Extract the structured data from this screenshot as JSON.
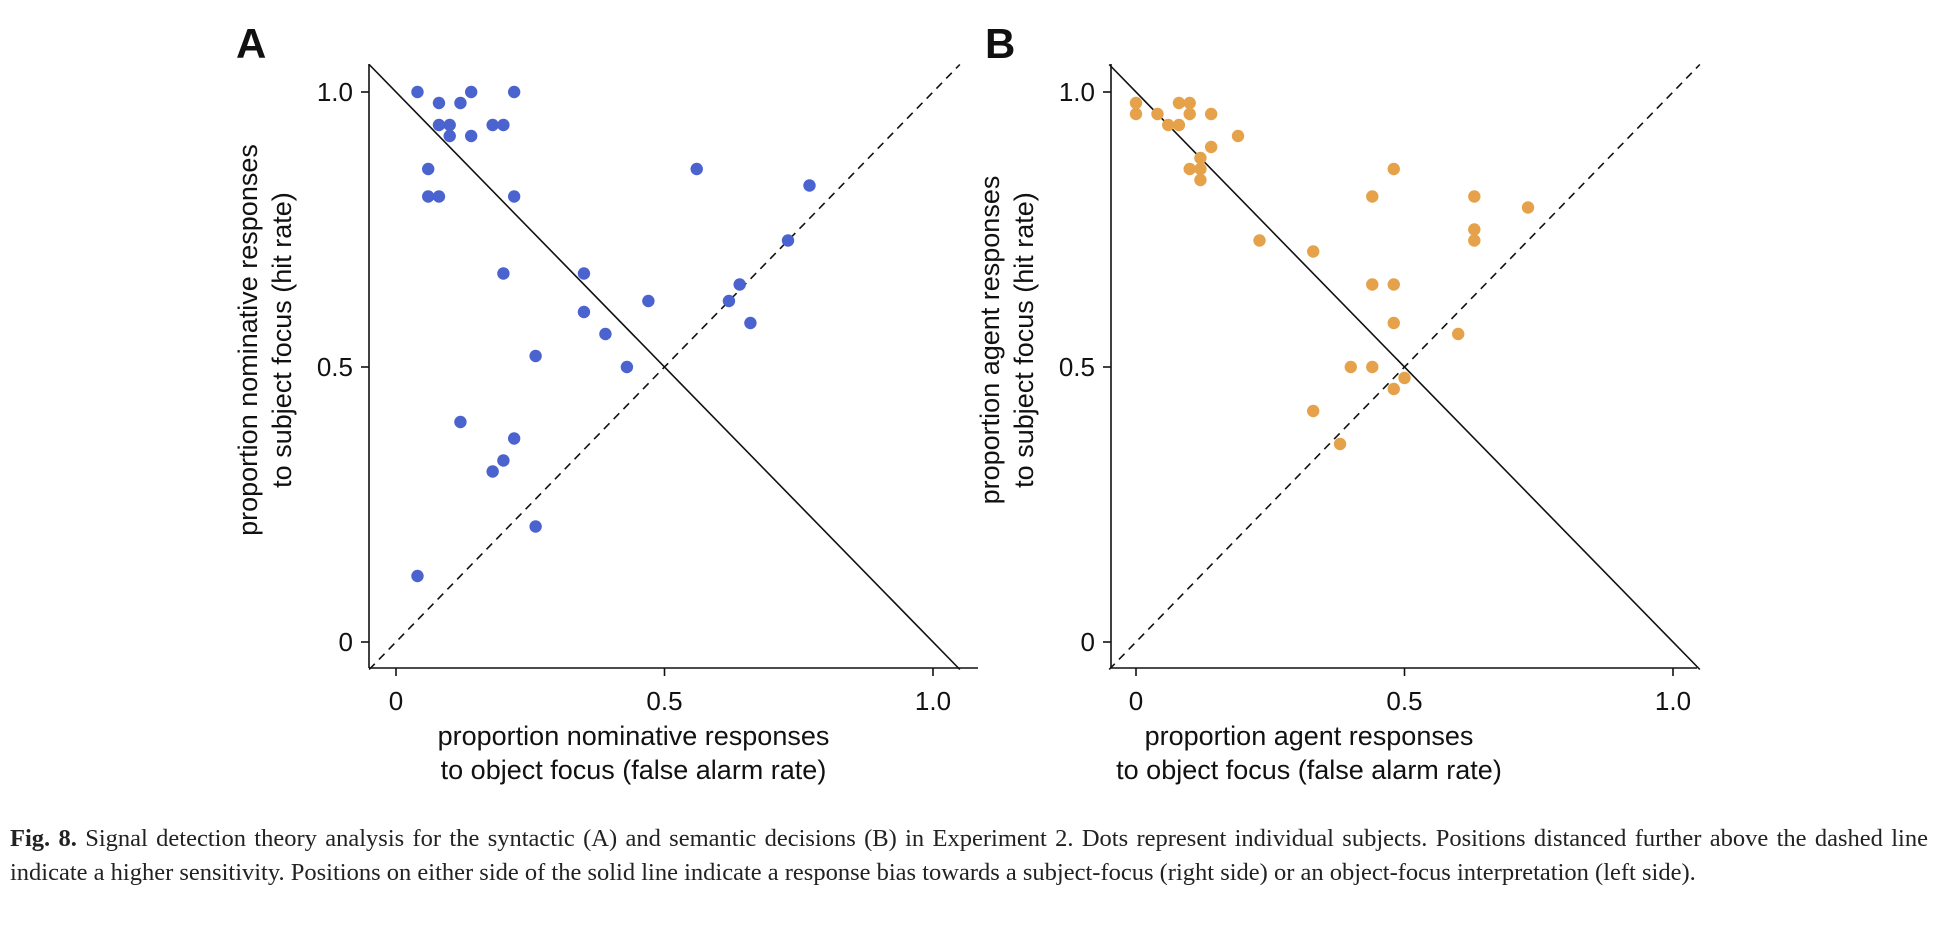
{
  "colors": {
    "panel_a_points": "#4a63cf",
    "panel_b_points": "#e5a24a"
  },
  "chart_data": [
    {
      "type": "scatter",
      "panel": "A",
      "xlabel": [
        "proportion nominative responses",
        "to object focus (false alarm rate)"
      ],
      "ylabel": [
        "proportion nominative responses",
        "to subject focus (hit rate)"
      ],
      "xticks": [
        "0",
        "0.5",
        "1.0"
      ],
      "yticks": [
        "0",
        "0.5",
        "1.0"
      ],
      "xlim": [
        -0.05,
        1.05
      ],
      "ylim": [
        -0.05,
        1.05
      ],
      "grid": false,
      "reference_lines": {
        "solid": "y = 1 - x",
        "dashed": "y = x"
      },
      "points": [
        [
          0.04,
          1.0
        ],
        [
          0.14,
          1.0
        ],
        [
          0.22,
          1.0
        ],
        [
          0.08,
          0.98
        ],
        [
          0.12,
          0.98
        ],
        [
          0.08,
          0.94
        ],
        [
          0.1,
          0.94
        ],
        [
          0.18,
          0.94
        ],
        [
          0.2,
          0.94
        ],
        [
          0.1,
          0.92
        ],
        [
          0.14,
          0.92
        ],
        [
          0.06,
          0.86
        ],
        [
          0.06,
          0.81
        ],
        [
          0.08,
          0.81
        ],
        [
          0.22,
          0.81
        ],
        [
          0.56,
          0.86
        ],
        [
          0.77,
          0.83
        ],
        [
          0.73,
          0.73
        ],
        [
          0.2,
          0.67
        ],
        [
          0.35,
          0.67
        ],
        [
          0.64,
          0.65
        ],
        [
          0.47,
          0.62
        ],
        [
          0.62,
          0.62
        ],
        [
          0.35,
          0.6
        ],
        [
          0.66,
          0.58
        ],
        [
          0.39,
          0.56
        ],
        [
          0.26,
          0.52
        ],
        [
          0.43,
          0.5
        ],
        [
          0.12,
          0.4
        ],
        [
          0.22,
          0.37
        ],
        [
          0.2,
          0.33
        ],
        [
          0.18,
          0.31
        ],
        [
          0.26,
          0.21
        ],
        [
          0.04,
          0.12
        ]
      ]
    },
    {
      "type": "scatter",
      "panel": "B",
      "xlabel": [
        "proportion agent responses",
        "to object focus (false alarm rate)"
      ],
      "ylabel": [
        "proportion agent responses",
        "to subject focus (hit rate)"
      ],
      "xticks": [
        "0",
        "0.5",
        "1.0"
      ],
      "yticks": [
        "0",
        "0.5",
        "1.0"
      ],
      "xlim": [
        -0.05,
        1.05
      ],
      "ylim": [
        -0.05,
        1.05
      ],
      "grid": false,
      "reference_lines": {
        "solid": "y = 1 - x",
        "dashed": "y = x"
      },
      "points": [
        [
          0.0,
          0.98
        ],
        [
          0.0,
          0.96
        ],
        [
          0.04,
          0.96
        ],
        [
          0.08,
          0.98
        ],
        [
          0.1,
          0.98
        ],
        [
          0.1,
          0.96
        ],
        [
          0.14,
          0.96
        ],
        [
          0.06,
          0.94
        ],
        [
          0.08,
          0.94
        ],
        [
          0.19,
          0.92
        ],
        [
          0.14,
          0.9
        ],
        [
          0.12,
          0.88
        ],
        [
          0.1,
          0.86
        ],
        [
          0.12,
          0.86
        ],
        [
          0.12,
          0.84
        ],
        [
          0.48,
          0.86
        ],
        [
          0.44,
          0.81
        ],
        [
          0.63,
          0.81
        ],
        [
          0.73,
          0.79
        ],
        [
          0.63,
          0.75
        ],
        [
          0.23,
          0.73
        ],
        [
          0.63,
          0.73
        ],
        [
          0.33,
          0.71
        ],
        [
          0.44,
          0.65
        ],
        [
          0.48,
          0.65
        ],
        [
          0.48,
          0.58
        ],
        [
          0.6,
          0.56
        ],
        [
          0.4,
          0.5
        ],
        [
          0.44,
          0.5
        ],
        [
          0.5,
          0.48
        ],
        [
          0.48,
          0.46
        ],
        [
          0.33,
          0.42
        ],
        [
          0.38,
          0.36
        ]
      ]
    }
  ],
  "caption": {
    "label": "Fig. 8.",
    "text": "Signal detection theory analysis for the syntactic (A) and semantic decisions (B) in Experiment 2. Dots represent individual subjects. Positions distanced further above the dashed line indicate a higher sensitivity. Positions on either side of the solid line indicate a response bias towards a subject-focus (right side) or an object-focus interpretation (left side)."
  }
}
